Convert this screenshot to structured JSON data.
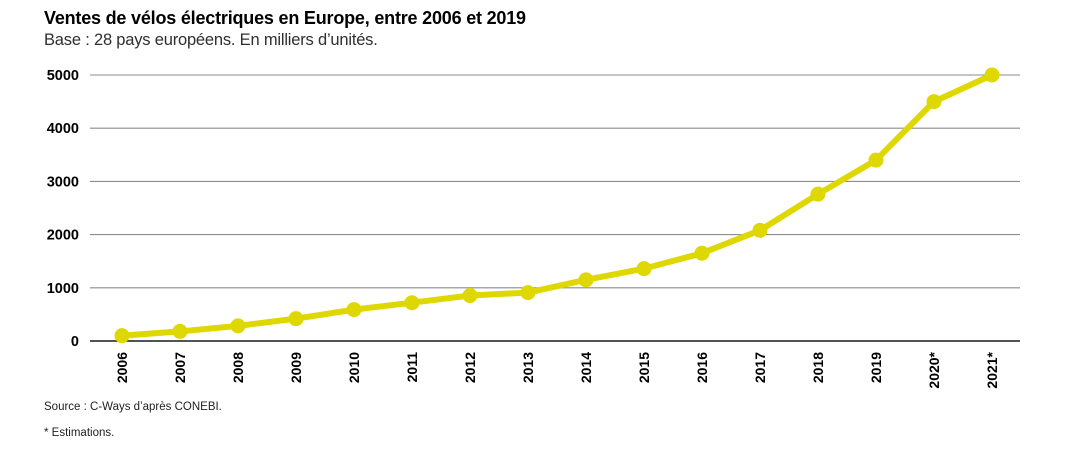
{
  "header": {
    "title": "Ventes de vélos électriques en Europe, entre 2006 et 2019",
    "subtitle": "Base : 28 pays européens. En milliers d’unités."
  },
  "footer": {
    "source": "Source : C-Ways d’après CONEBI.",
    "footnote": "* Estimations."
  },
  "colors": {
    "line": "#ded800",
    "marker": "#ded800",
    "grid": "#8c8c8c",
    "zero_axis": "#1a1a1a",
    "text": "#000000"
  },
  "chart_data": {
    "type": "line",
    "title": "Ventes de vélos électriques en Europe, entre 2006 et 2019",
    "subtitle": "Base : 28 pays européens. En milliers d’unités.",
    "categories": [
      "2006",
      "2007",
      "2008",
      "2009",
      "2010",
      "2011",
      "2012",
      "2013",
      "2014",
      "2015",
      "2016",
      "2017",
      "2018",
      "2019",
      "2020*",
      "2021*"
    ],
    "values": [
      100,
      180,
      285,
      420,
      590,
      720,
      855,
      910,
      1150,
      1360,
      1650,
      2080,
      2760,
      3400,
      4500,
      5000
    ],
    "unit": "milliers d’unités",
    "xlabel": "",
    "ylabel": "",
    "ylim": [
      0,
      5000
    ],
    "yticks": [
      0,
      1000,
      2000,
      3000,
      4000,
      5000
    ],
    "grid": true,
    "legend": false,
    "marker": "circle",
    "annotations": [
      "* Estimations."
    ]
  }
}
